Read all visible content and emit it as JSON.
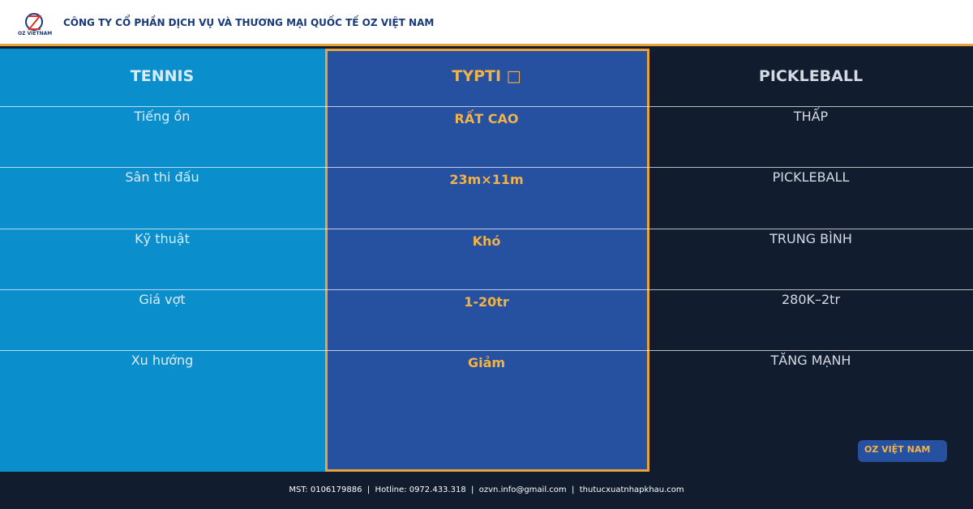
{
  "header": {
    "logo_text": "OZ VIETNAM",
    "company": "CÔNG TY CỔ PHẦN DỊCH VỤ VÀ THƯƠNG MẠI QUỐC TẾ OZ VIỆT NAM"
  },
  "table": {
    "columns": [
      "TENNIS",
      "TYPTI □",
      "PICKLEBALL"
    ],
    "rows": [
      [
        "Tiếng ồn",
        "RẤT CAO",
        "THẤP"
      ],
      [
        "Sân thi đấu",
        "23m×11m",
        "PICKLEBALL"
      ],
      [
        "Kỹ thuật",
        "Khó",
        "TRUNG BÌNH"
      ],
      [
        "Giá vợt",
        "1-20tr",
        "280K–2tr"
      ],
      [
        "Xu hướng",
        "Giảm",
        "TĂNG MẠNH"
      ]
    ]
  },
  "badge": "OZ VIỆT NAM",
  "footer": {
    "text": "MST: 0106179886  |  Hotline: 0972.433.318  |  ozvn.info@gmail.com  |  thutucxuatnhapkhau.com"
  }
}
